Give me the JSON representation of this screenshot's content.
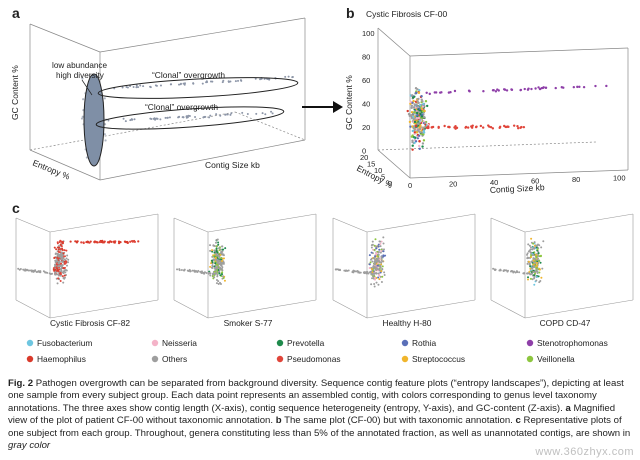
{
  "panel_a": {
    "letter": "a",
    "axis_z": "GC Content %",
    "axis_y": "Entropy %",
    "axis_x": "Contig Size kb",
    "annotation_core": "low abundance\nhigh diversity",
    "annotation_clonal_top": "“Clonal” overgrowth",
    "annotation_clonal_bottom": "“Clonal” overgrowth"
  },
  "panel_b": {
    "letter": "b",
    "title": "Cystic Fibrosis CF-00",
    "axis_z": "GC Content %",
    "axis_y": "Entropy %",
    "axis_x": "Contig Size kb",
    "z_ticks": [
      "100",
      "80",
      "60",
      "40",
      "20",
      "0"
    ],
    "y_ticks": [
      "20",
      "15",
      "10",
      "5",
      "0"
    ],
    "x_ticks": [
      "0",
      "20",
      "40",
      "60",
      "80",
      "100"
    ]
  },
  "panel_c": {
    "letter": "c",
    "subplots": [
      {
        "label": "Cystic Fibrosis CF-82"
      },
      {
        "label": "Smoker S-77"
      },
      {
        "label": "Healthy H-80"
      },
      {
        "label": "COPD CD-47"
      }
    ]
  },
  "legend": [
    {
      "name": "Fusobacterium",
      "color": "#6ec6e0"
    },
    {
      "name": "Neisseria",
      "color": "#f4b3c8"
    },
    {
      "name": "Prevotella",
      "color": "#1f8a4c"
    },
    {
      "name": "Rothia",
      "color": "#5a6fb8"
    },
    {
      "name": "Stenotrophomonas",
      "color": "#8e3fa8"
    },
    {
      "name": "Haemophilus",
      "color": "#d93a2b"
    },
    {
      "name": "Others",
      "color": "#9e9e9e"
    },
    {
      "name": "Pseudomonas",
      "color": "#e0453a"
    },
    {
      "name": "Streptococcus",
      "color": "#f0b52c"
    },
    {
      "name": "Veillonella",
      "color": "#8dc63f"
    }
  ],
  "caption": {
    "label": "Fig. 2",
    "text_1": " Pathogen overgrowth can be separated from background diversity. Sequence contig feature plots (“entropy landscapes”), depicting at least one sample from every subject group. Each data point represents an assembled contig, with colors corresponding to genus level taxonomy annotations. The three axes show contig length (X-axis), contig sequence heterogeneity (entropy, Y-axis), and GC-content (Z-axis). ",
    "part_a": "a",
    "text_2": " Magnified view of the plot of patient CF-00 without taxonomic annotation. ",
    "part_b": "b",
    "text_3": " The same plot (CF-00) but with taxonomic annotation. ",
    "part_c": "c",
    "text_4": " Representative plots of one subject from each group. Throughout, genera constituting less than 5% of the annotated fraction, as well as unannotated contigs, are shown in ",
    "italic": "gray color"
  },
  "watermark": "www.360zhyx.com"
}
